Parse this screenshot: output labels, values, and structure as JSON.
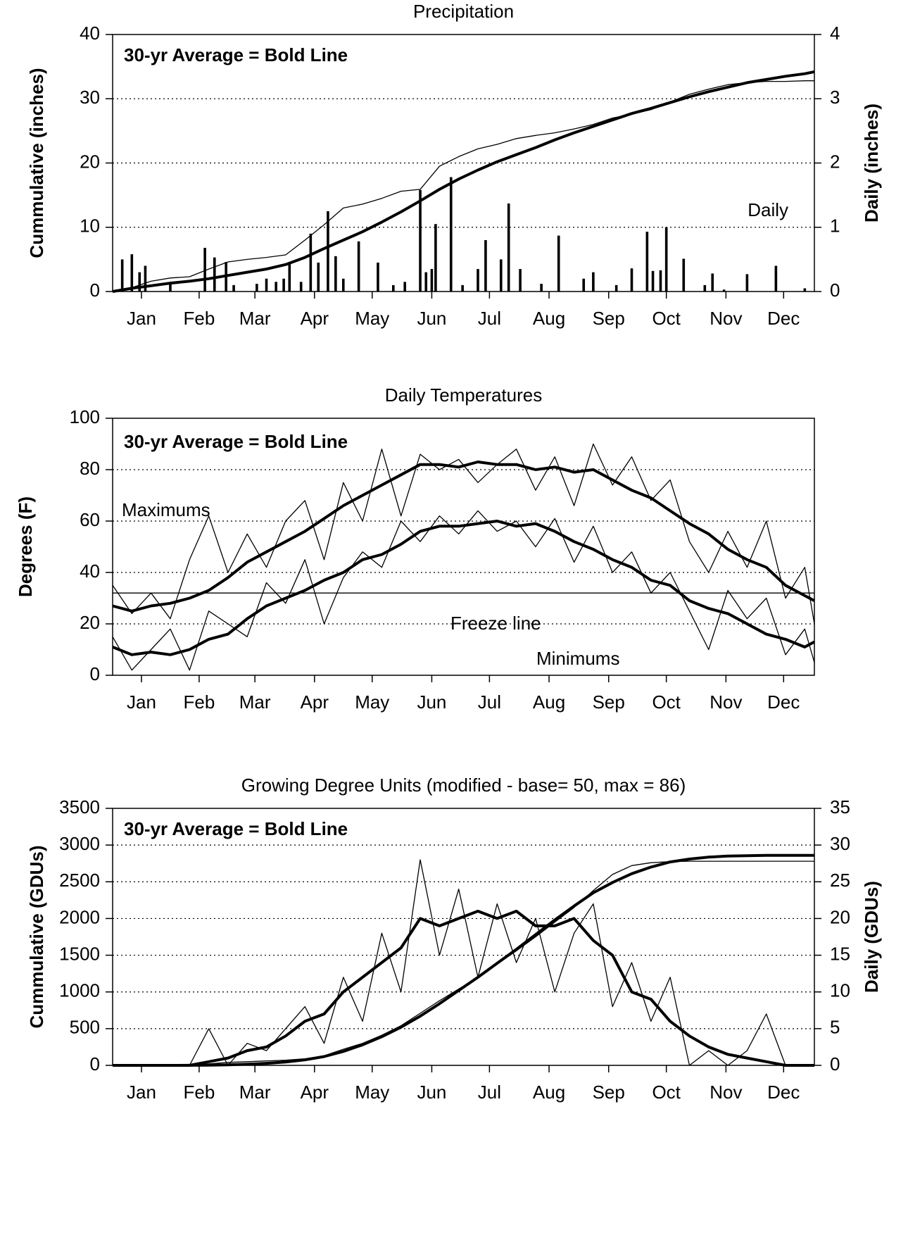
{
  "chart_data": [
    {
      "type": "line",
      "title": "Precipitation",
      "ylabel": "Cummulative (inches)",
      "y2label": "Daily (inches)",
      "annotations": [
        "30-yr Average = Bold Line",
        "Daily"
      ],
      "xlim": [
        0,
        365
      ],
      "ylim": [
        0,
        40
      ],
      "yticks": [
        0,
        10,
        20,
        30,
        40
      ],
      "y2lim": [
        0,
        4
      ],
      "y2ticks": [
        0,
        1,
        2,
        3,
        4
      ],
      "grid": true,
      "xticks": [
        {
          "value": 15,
          "label": "Jan"
        },
        {
          "value": 45,
          "label": "Feb"
        },
        {
          "value": 74,
          "label": "Mar"
        },
        {
          "value": 105,
          "label": "Apr"
        },
        {
          "value": 135,
          "label": "May"
        },
        {
          "value": 166,
          "label": "Jun"
        },
        {
          "value": 196,
          "label": "Jul"
        },
        {
          "value": 227,
          "label": "Aug"
        },
        {
          "value": 258,
          "label": "Sep"
        },
        {
          "value": 288,
          "label": "Oct"
        },
        {
          "value": 319,
          "label": "Nov"
        },
        {
          "value": 349,
          "label": "Dec"
        }
      ],
      "x": [
        0,
        10,
        20,
        30,
        40,
        50,
        60,
        70,
        80,
        90,
        100,
        110,
        120,
        130,
        140,
        150,
        160,
        170,
        180,
        190,
        200,
        210,
        220,
        230,
        240,
        250,
        260,
        270,
        280,
        290,
        300,
        310,
        320,
        330,
        340,
        350,
        360,
        365
      ],
      "series": [
        {
          "color": "#000000",
          "line_width": 4,
          "values": [
            0,
            0.5,
            0.9,
            1.3,
            1.6,
            2.0,
            2.5,
            3.0,
            3.5,
            4.2,
            5.3,
            6.7,
            8.0,
            9.3,
            10.8,
            12.4,
            14.1,
            15.9,
            17.5,
            18.9,
            20.2,
            21.3,
            22.4,
            23.6,
            24.7,
            25.7,
            26.7,
            27.7,
            28.5,
            29.4,
            30.3,
            31.1,
            31.8,
            32.5,
            33.0,
            33.5,
            33.9,
            34.2
          ]
        },
        {
          "color": "#000000",
          "line_width": 1.3,
          "values": [
            0,
            0.6,
            1.6,
            2.1,
            2.3,
            3.5,
            4.6,
            5.0,
            5.3,
            5.7,
            8.0,
            10.4,
            13.0,
            13.6,
            14.5,
            15.6,
            15.9,
            19.5,
            21.0,
            22.2,
            22.9,
            23.8,
            24.3,
            24.7,
            25.3,
            26.0,
            27.0,
            27.6,
            28.3,
            29.5,
            30.7,
            31.5,
            32.2,
            32.5,
            32.7,
            32.7,
            32.8,
            32.8
          ]
        },
        {
          "type": "bar",
          "axis": "y2",
          "color": "#000000",
          "x": [
            5,
            10,
            14,
            17,
            30,
            48,
            53,
            59,
            63,
            75,
            80,
            85,
            89,
            92,
            98,
            103,
            107,
            112,
            116,
            120,
            128,
            138,
            146,
            152,
            160,
            163,
            166,
            168,
            176,
            182,
            190,
            194,
            202,
            206,
            212,
            223,
            232,
            245,
            250,
            262,
            270,
            278,
            281,
            285,
            288,
            297,
            308,
            312,
            318,
            330,
            345,
            360
          ],
          "values": [
            0.5,
            0.58,
            0.3,
            0.4,
            0.12,
            0.68,
            0.53,
            0.46,
            0.1,
            0.12,
            0.2,
            0.15,
            0.2,
            0.45,
            0.15,
            0.9,
            0.45,
            1.25,
            0.55,
            0.2,
            0.78,
            0.45,
            0.1,
            0.15,
            1.58,
            0.3,
            0.35,
            1.05,
            1.78,
            0.1,
            0.35,
            0.8,
            0.5,
            1.37,
            0.35,
            0.12,
            0.87,
            0.2,
            0.3,
            0.1,
            0.36,
            0.93,
            0.32,
            0.33,
            1.0,
            0.51,
            0.1,
            0.28,
            0.03,
            0.27,
            0.4,
            0.05
          ]
        }
      ]
    },
    {
      "type": "line",
      "title": "Daily Temperatures",
      "ylabel": "Degrees (F)",
      "annotations": [
        "30-yr Average = Bold Line",
        "Maximums",
        "Freeze line",
        "Minimums"
      ],
      "hline": 32,
      "xlim": [
        0,
        365
      ],
      "ylim": [
        0,
        100
      ],
      "yticks": [
        0,
        20,
        40,
        60,
        80,
        100
      ],
      "grid": true,
      "xticks": [
        {
          "value": 15,
          "label": "Jan"
        },
        {
          "value": 45,
          "label": "Feb"
        },
        {
          "value": 74,
          "label": "Mar"
        },
        {
          "value": 105,
          "label": "Apr"
        },
        {
          "value": 135,
          "label": "May"
        },
        {
          "value": 166,
          "label": "Jun"
        },
        {
          "value": 196,
          "label": "Jul"
        },
        {
          "value": 227,
          "label": "Aug"
        },
        {
          "value": 258,
          "label": "Sep"
        },
        {
          "value": 288,
          "label": "Oct"
        },
        {
          "value": 319,
          "label": "Nov"
        },
        {
          "value": 349,
          "label": "Dec"
        }
      ],
      "x": [
        0,
        10,
        20,
        30,
        40,
        50,
        60,
        70,
        80,
        90,
        100,
        110,
        120,
        130,
        140,
        150,
        160,
        170,
        180,
        190,
        200,
        210,
        220,
        230,
        240,
        250,
        260,
        270,
        280,
        290,
        300,
        310,
        320,
        330,
        340,
        350,
        360,
        365
      ],
      "series": [
        {
          "color": "#000000",
          "line_width": 1.3,
          "values": [
            35,
            24,
            32,
            22,
            45,
            62,
            40,
            55,
            42,
            60,
            68,
            45,
            75,
            60,
            88,
            62,
            86,
            80,
            84,
            75,
            82,
            88,
            72,
            85,
            66,
            90,
            74,
            85,
            68,
            76,
            52,
            40,
            56,
            42,
            60,
            30,
            42,
            20
          ]
        },
        {
          "color": "#000000",
          "line_width": 1.3,
          "values": [
            15,
            2,
            10,
            18,
            2,
            25,
            20,
            15,
            36,
            28,
            45,
            20,
            38,
            48,
            42,
            60,
            52,
            62,
            55,
            64,
            56,
            60,
            50,
            61,
            44,
            58,
            40,
            48,
            32,
            40,
            25,
            10,
            33,
            22,
            30,
            8,
            18,
            5
          ]
        },
        {
          "color": "#000000",
          "line_width": 4,
          "values": [
            27,
            25,
            27,
            28,
            30,
            33,
            38,
            44,
            48,
            52,
            56,
            61,
            66,
            70,
            74,
            78,
            82,
            82,
            81,
            83,
            82,
            82,
            80,
            81,
            79,
            80,
            76,
            72,
            69,
            64,
            59,
            55,
            49,
            45,
            42,
            35,
            31,
            29
          ]
        },
        {
          "color": "#000000",
          "line_width": 4,
          "values": [
            11,
            8,
            9,
            8,
            10,
            14,
            16,
            22,
            27,
            30,
            33,
            37,
            40,
            45,
            47,
            51,
            56,
            58,
            58,
            59,
            60,
            58,
            59,
            56,
            52,
            49,
            45,
            42,
            37,
            35,
            29,
            26,
            24,
            20,
            16,
            14,
            11,
            13
          ]
        }
      ]
    },
    {
      "type": "line",
      "title": "Growing Degree Units (modified - base= 50, max = 86)",
      "ylabel": "Cummulative (GDUs)",
      "y2label": "Daily (GDUs)",
      "annotations": [
        "30-yr Average = Bold Line"
      ],
      "xlim": [
        0,
        365
      ],
      "ylim": [
        0,
        3500
      ],
      "yticks": [
        0,
        500,
        1000,
        1500,
        2000,
        2500,
        3000,
        3500
      ],
      "y2lim": [
        0,
        35
      ],
      "y2ticks": [
        0,
        5,
        10,
        15,
        20,
        25,
        30,
        35
      ],
      "grid": true,
      "xticks": [
        {
          "value": 15,
          "label": "Jan"
        },
        {
          "value": 45,
          "label": "Feb"
        },
        {
          "value": 74,
          "label": "Mar"
        },
        {
          "value": 105,
          "label": "Apr"
        },
        {
          "value": 135,
          "label": "May"
        },
        {
          "value": 166,
          "label": "Jun"
        },
        {
          "value": 196,
          "label": "Jul"
        },
        {
          "value": 227,
          "label": "Aug"
        },
        {
          "value": 258,
          "label": "Sep"
        },
        {
          "value": 288,
          "label": "Oct"
        },
        {
          "value": 319,
          "label": "Nov"
        },
        {
          "value": 349,
          "label": "Dec"
        }
      ],
      "x": [
        0,
        10,
        20,
        30,
        40,
        50,
        60,
        70,
        80,
        90,
        100,
        110,
        120,
        130,
        140,
        150,
        160,
        170,
        180,
        190,
        200,
        210,
        220,
        230,
        240,
        250,
        260,
        270,
        280,
        290,
        300,
        310,
        320,
        330,
        340,
        350,
        360,
        365
      ],
      "series": [
        {
          "color": "#000000",
          "line_width": 1.3,
          "axis": "y2",
          "values": [
            0,
            0,
            0,
            0,
            0,
            5,
            0,
            3,
            2,
            5,
            8,
            3,
            12,
            6,
            18,
            10,
            28,
            15,
            24,
            12,
            22,
            14,
            20,
            10,
            18,
            22,
            8,
            14,
            6,
            12,
            0,
            2,
            0,
            2,
            7,
            0,
            0,
            0
          ]
        },
        {
          "color": "#000000",
          "line_width": 4,
          "axis": "y2",
          "values": [
            0,
            0,
            0,
            0,
            0,
            0.5,
            1,
            2,
            2.5,
            4,
            6,
            7,
            10,
            12,
            14,
            16,
            20,
            19,
            20,
            21,
            20,
            21,
            19,
            19,
            20,
            17,
            15,
            10,
            9,
            6,
            4,
            2.5,
            1.5,
            1,
            0.5,
            0,
            0,
            0
          ]
        },
        {
          "color": "#000000",
          "line_width": 1.3,
          "values": [
            0,
            0,
            0,
            0,
            0,
            20,
            40,
            50,
            60,
            70,
            90,
            130,
            220,
            300,
            410,
            540,
            710,
            880,
            1040,
            1200,
            1380,
            1560,
            1750,
            1950,
            2150,
            2380,
            2600,
            2720,
            2760,
            2775,
            2780,
            2780,
            2780,
            2780,
            2780,
            2780,
            2780,
            2780
          ]
        },
        {
          "color": "#000000",
          "line_width": 4,
          "values": [
            0,
            0,
            0,
            0,
            1,
            3,
            8,
            15,
            28,
            45,
            75,
            120,
            190,
            280,
            390,
            520,
            670,
            840,
            1020,
            1200,
            1390,
            1580,
            1780,
            1980,
            2170,
            2350,
            2490,
            2610,
            2700,
            2770,
            2810,
            2835,
            2850,
            2855,
            2860,
            2860,
            2860,
            2860
          ]
        }
      ]
    }
  ]
}
